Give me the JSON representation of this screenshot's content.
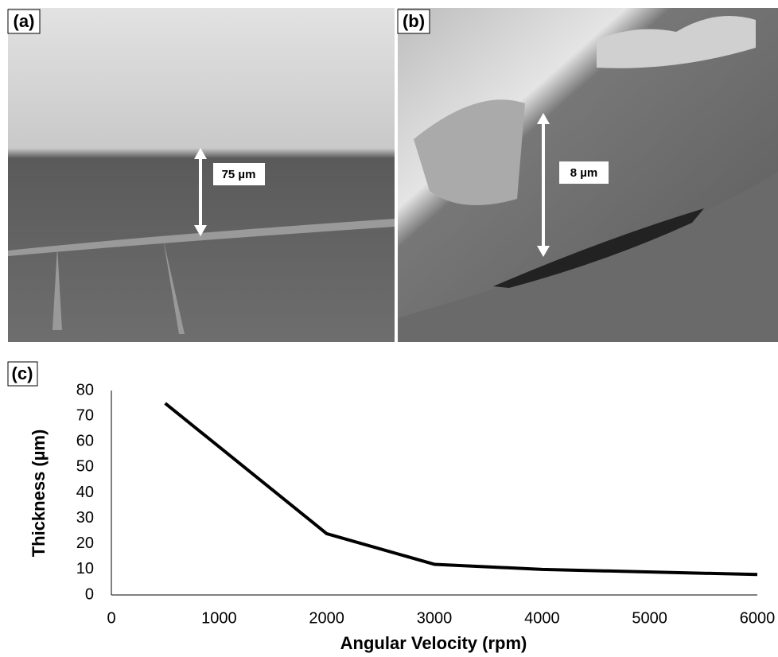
{
  "panel_labels": {
    "a": "(a)",
    "b": "(b)",
    "c": "(c)"
  },
  "annotations": {
    "a": "75 µm",
    "b": "8 µm"
  },
  "chart_data": {
    "type": "line",
    "x_label": "Angular Velocity (rpm)",
    "y_label": "Thickness (µm)",
    "x": [
      500,
      2000,
      3000,
      4000,
      6000
    ],
    "values": [
      75,
      24,
      12,
      10,
      8
    ],
    "color": "#000000",
    "xlim": [
      0,
      6000
    ],
    "xticks": [
      0,
      1000,
      2000,
      3000,
      4000,
      5000,
      6000
    ],
    "ylim": [
      0,
      80
    ],
    "yticks": [
      0,
      10,
      20,
      30,
      40,
      50,
      60,
      70,
      80
    ],
    "grid": false
  }
}
